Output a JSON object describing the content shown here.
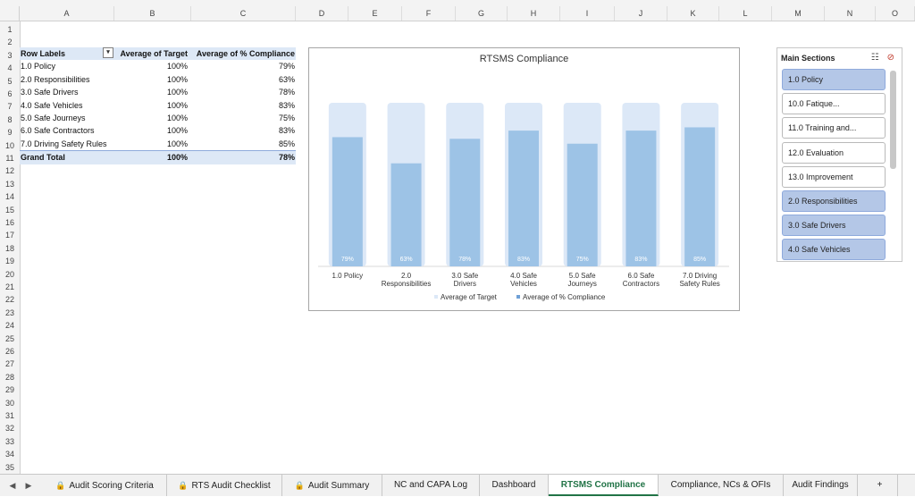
{
  "columns": [
    "A",
    "B",
    "C",
    "D",
    "E",
    "F",
    "G",
    "H",
    "I",
    "J",
    "K",
    "L",
    "M",
    "N",
    "O"
  ],
  "rows": [
    "1",
    "2",
    "3",
    "4",
    "5",
    "6",
    "7",
    "8",
    "9",
    "10",
    "11",
    "12",
    "13",
    "14",
    "15",
    "16",
    "17",
    "18",
    "19",
    "20",
    "21",
    "22",
    "23",
    "24",
    "25",
    "26",
    "27",
    "28",
    "29",
    "30",
    "31",
    "32",
    "33",
    "34",
    "35"
  ],
  "pivot": {
    "headers": [
      "Row Labels",
      "Average of Target",
      "Average of % Compliance"
    ],
    "rows": [
      {
        "label": "1.0 Policy",
        "target": "100%",
        "compliance": "79%"
      },
      {
        "label": "2.0 Responsibilities",
        "target": "100%",
        "compliance": "63%"
      },
      {
        "label": "3.0 Safe Drivers",
        "target": "100%",
        "compliance": "78%"
      },
      {
        "label": "4.0 Safe Vehicles",
        "target": "100%",
        "compliance": "83%"
      },
      {
        "label": "5.0 Safe Journeys",
        "target": "100%",
        "compliance": "75%"
      },
      {
        "label": "6.0 Safe Contractors",
        "target": "100%",
        "compliance": "83%"
      },
      {
        "label": "7.0 Driving Safety Rules",
        "target": "100%",
        "compliance": "85%"
      }
    ],
    "total": {
      "label": "Grand Total",
      "target": "100%",
      "compliance": "78%"
    }
  },
  "chart_data": {
    "type": "bar",
    "title": "RTSMS Compliance",
    "categories": [
      "1.0 Policy",
      "2.0 Responsibilities",
      "3.0 Safe Drivers",
      "4.0 Safe Vehicles",
      "5.0 Safe Journeys",
      "6.0 Safe Contractors",
      "7.0 Driving Safety Rules"
    ],
    "series": [
      {
        "name": "Average of Target",
        "values": [
          100,
          100,
          100,
          100,
          100,
          100,
          100
        ],
        "color": "#dce8f7"
      },
      {
        "name": "Average of % Compliance",
        "values": [
          79,
          63,
          78,
          83,
          75,
          83,
          85
        ],
        "color": "#9dc3e6"
      }
    ],
    "data_labels": [
      "79%",
      "63%",
      "78%",
      "83%",
      "75%",
      "83%",
      "85%"
    ],
    "ylim": [
      0,
      100
    ],
    "legend_position": "bottom",
    "grid": false
  },
  "slicer": {
    "title": "Main Sections",
    "items": [
      {
        "label": "1.0 Policy",
        "selected": true
      },
      {
        "label": "10.0 Fatique...",
        "selected": false
      },
      {
        "label": "11.0 Training and...",
        "selected": false
      },
      {
        "label": "12.0 Evaluation",
        "selected": false
      },
      {
        "label": "13.0 Improvement",
        "selected": false
      },
      {
        "label": "2.0 Responsibilities",
        "selected": true
      },
      {
        "label": "3.0 Safe Drivers",
        "selected": true
      },
      {
        "label": "4.0 Safe Vehicles",
        "selected": true
      }
    ]
  },
  "tabs": [
    {
      "label": "Audit Scoring Criteria",
      "locked": true,
      "active": false
    },
    {
      "label": "RTS Audit Checklist",
      "locked": true,
      "active": false
    },
    {
      "label": "Audit Summary",
      "locked": true,
      "active": false
    },
    {
      "label": "NC and CAPA Log",
      "locked": false,
      "active": false
    },
    {
      "label": "Dashboard",
      "locked": false,
      "active": false
    },
    {
      "label": "RTSMS Compliance",
      "locked": false,
      "active": true
    },
    {
      "label": "Compliance, NCs & OFIs",
      "locked": false,
      "active": false
    },
    {
      "label": "Audit Findings",
      "locked": false,
      "active": false
    }
  ],
  "icons": {
    "add_sheet": "+",
    "prev": "◀",
    "next": "▶",
    "lock": "🔒",
    "filter": "▾"
  }
}
